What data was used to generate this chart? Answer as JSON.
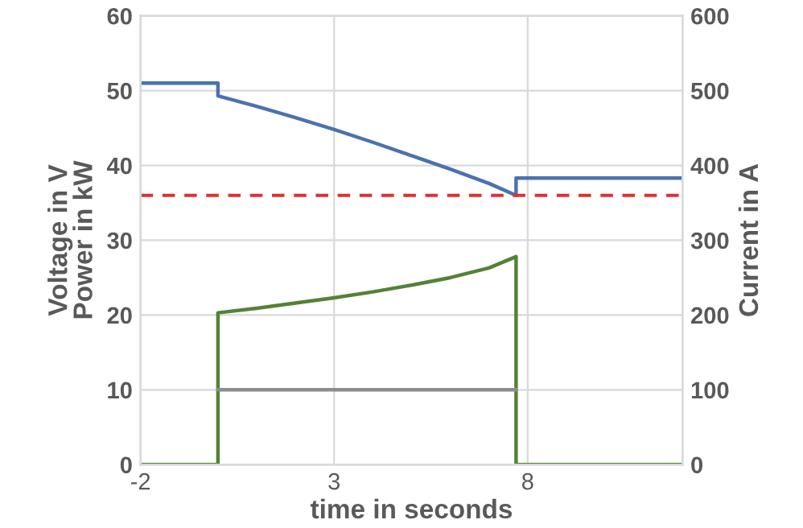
{
  "chart_data": {
    "type": "line",
    "xlabel": "time in seconds",
    "ylabel": "Voltage in V\nPower in kW",
    "y2label": "Current in A",
    "xlim": [
      -2,
      12
    ],
    "xticks": [
      -2,
      3,
      8
    ],
    "ylim": [
      0,
      60
    ],
    "yticks": [
      0,
      10,
      20,
      30,
      40,
      50,
      60
    ],
    "y2lim": [
      0,
      600
    ],
    "y2ticks": [
      0,
      100,
      200,
      300,
      400,
      500,
      600
    ],
    "grid": true,
    "legend": false,
    "series": [
      {
        "color": "#4a72b0",
        "x": [
          -2,
          0,
          0,
          1,
          2,
          3,
          4,
          5,
          6,
          7,
          7.7,
          7.7,
          12
        ],
        "values": [
          51,
          51,
          49.3,
          47.9,
          46.4,
          44.8,
          43.1,
          41.3,
          39.5,
          37.6,
          36,
          38.3,
          38.3
        ]
      },
      {
        "color": "#548235",
        "x": [
          -2,
          0,
          0,
          1,
          2,
          3,
          4,
          5,
          6,
          7,
          7.7,
          7.7,
          12
        ],
        "values": [
          0,
          0,
          20.3,
          20.9,
          21.6,
          22.3,
          23.1,
          24,
          25,
          26.3,
          27.8,
          0,
          0
        ]
      },
      {
        "color": "#8c8c8c",
        "x": [
          0,
          7.7
        ],
        "values": [
          10,
          10
        ]
      }
    ],
    "ref_lines": [
      {
        "axis": "y",
        "value": 36,
        "color": "#e03030",
        "line_style": "dashed"
      }
    ]
  }
}
